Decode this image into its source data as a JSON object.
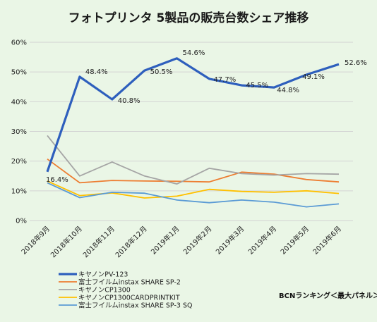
{
  "chart_data": {
    "type": "line",
    "title": "フォトプリンタ 5製品の販売台数シェア推移",
    "categories": [
      "2018年9月",
      "2018年10月",
      "2018年11月",
      "2018年12月",
      "2019年1月",
      "2019年2月",
      "2019年3月",
      "2019年4月",
      "2019年5月",
      "2019年6月"
    ],
    "ylim": [
      0,
      60
    ],
    "yticks": [
      "0%",
      "10%",
      "20%",
      "30%",
      "40%",
      "50%",
      "60%"
    ],
    "ytick_values": [
      0,
      10,
      20,
      30,
      40,
      50,
      60
    ],
    "grid": true,
    "legend_position": "bottom-left",
    "series": [
      {
        "name": "キヤノンPV-123",
        "color": "#2e5fbd",
        "emphasis": true,
        "values": [
          16.4,
          48.4,
          40.8,
          50.5,
          54.6,
          47.7,
          45.5,
          44.8,
          49.1,
          52.6
        ],
        "labels": [
          "16.4%",
          "48.4%",
          "40.8%",
          "50.5%",
          "54.6%",
          "47.7%",
          "45.5%",
          "44.8%",
          "49.1%",
          "52.6%"
        ]
      },
      {
        "name": "富士フイルムinstax SHARE SP-2",
        "color": "#ed7d31",
        "values": [
          20.7,
          12.7,
          13.5,
          13.3,
          13.2,
          13.0,
          16.3,
          15.6,
          13.8,
          13.0
        ]
      },
      {
        "name": "キヤノンCP1300",
        "color": "#a5a5a5",
        "values": [
          28.6,
          15.0,
          19.7,
          15.0,
          12.3,
          17.6,
          15.8,
          15.3,
          15.8,
          15.6
        ]
      },
      {
        "name": "キヤノンCP1300CARDPRINTKIT",
        "color": "#ffc000",
        "values": [
          13.3,
          8.4,
          9.3,
          7.6,
          8.2,
          10.5,
          9.8,
          9.5,
          10.0,
          9.1
        ]
      },
      {
        "name": "富士フイルムinstax SHARE SP-3 SQ",
        "color": "#5b9bd5",
        "values": [
          12.7,
          7.7,
          9.5,
          9.2,
          6.9,
          6.0,
          6.9,
          6.2,
          4.6,
          5.6
        ]
      }
    ],
    "source_note": "BCNランキング＜最大パネル＞"
  }
}
